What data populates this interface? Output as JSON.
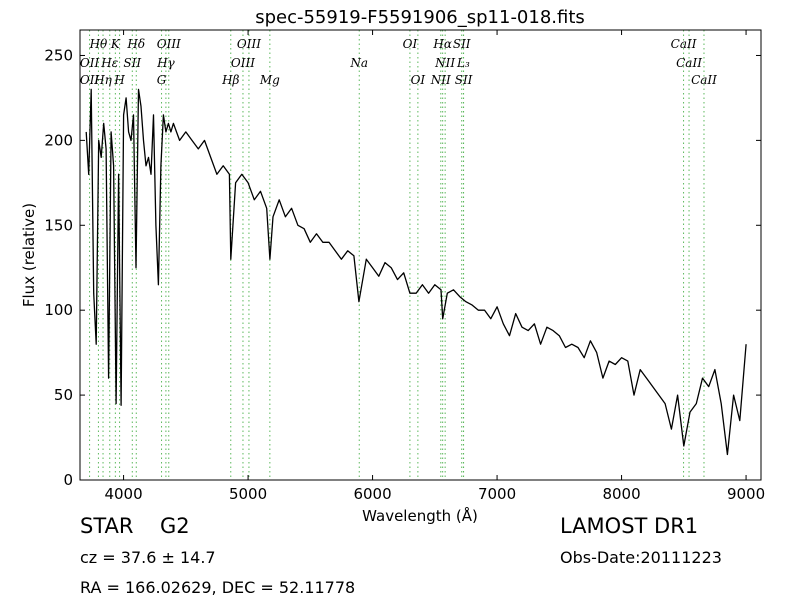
{
  "chart_data": {
    "type": "line",
    "title": "spec-55919-F5591906_sp11-018.fits",
    "xlabel": "Wavelength (Å)",
    "ylabel": "Flux (relative)",
    "xlim": [
      3650,
      9120
    ],
    "ylim": [
      0,
      265
    ],
    "xticks": [
      4000,
      5000,
      6000,
      7000,
      8000,
      9000
    ],
    "yticks": [
      0,
      50,
      100,
      150,
      200,
      250
    ],
    "grid": false,
    "line_color": "#000000",
    "marker_color": "#5cb85c",
    "series": [
      {
        "x": [
          3700,
          3720,
          3740,
          3760,
          3780,
          3800,
          3820,
          3840,
          3860,
          3880,
          3900,
          3920,
          3940,
          3960,
          3980,
          4000,
          4020,
          4040,
          4060,
          4080,
          4100,
          4120,
          4140,
          4160,
          4180,
          4200,
          4220,
          4240,
          4260,
          4280,
          4300,
          4320,
          4340,
          4360,
          4380,
          4400,
          4450,
          4500,
          4550,
          4600,
          4650,
          4700,
          4750,
          4800,
          4850,
          4861,
          4900,
          4950,
          5000,
          5050,
          5100,
          5150,
          5175,
          5200,
          5250,
          5300,
          5350,
          5400,
          5450,
          5500,
          5550,
          5600,
          5650,
          5700,
          5750,
          5800,
          5850,
          5890,
          5950,
          6000,
          6050,
          6100,
          6150,
          6200,
          6250,
          6300,
          6350,
          6400,
          6450,
          6500,
          6550,
          6563,
          6600,
          6650,
          6700,
          6750,
          6800,
          6850,
          6900,
          6950,
          7000,
          7050,
          7100,
          7150,
          7200,
          7250,
          7300,
          7350,
          7400,
          7450,
          7500,
          7550,
          7600,
          7650,
          7700,
          7750,
          7800,
          7850,
          7900,
          7950,
          8000,
          8050,
          8100,
          8150,
          8200,
          8250,
          8300,
          8350,
          8400,
          8450,
          8500,
          8550,
          8600,
          8650,
          8700,
          8750,
          8800,
          8850,
          8900,
          8950,
          9000
        ],
        "values": [
          205,
          180,
          230,
          110,
          80,
          200,
          190,
          210,
          195,
          60,
          205,
          185,
          45,
          180,
          44,
          215,
          225,
          205,
          200,
          215,
          125,
          230,
          220,
          200,
          185,
          190,
          180,
          215,
          150,
          115,
          185,
          215,
          205,
          210,
          205,
          210,
          200,
          205,
          200,
          195,
          200,
          190,
          180,
          185,
          180,
          130,
          175,
          180,
          175,
          165,
          170,
          160,
          130,
          155,
          165,
          155,
          160,
          150,
          148,
          140,
          145,
          140,
          140,
          135,
          130,
          135,
          132,
          105,
          130,
          125,
          120,
          128,
          125,
          118,
          122,
          110,
          110,
          115,
          110,
          115,
          112,
          95,
          110,
          112,
          108,
          105,
          103,
          100,
          100,
          95,
          102,
          92,
          85,
          98,
          90,
          88,
          92,
          80,
          90,
          88,
          85,
          78,
          80,
          78,
          72,
          82,
          75,
          60,
          70,
          68,
          72,
          70,
          50,
          65,
          60,
          55,
          50,
          45,
          30,
          50,
          20,
          40,
          45,
          60,
          55,
          65,
          45,
          15,
          50,
          35,
          80
        ]
      }
    ],
    "lines": [
      {
        "label": "Hθ",
        "x": 3798,
        "row": 0
      },
      {
        "label": "K",
        "x": 3934,
        "row": 0
      },
      {
        "label": "Hδ",
        "x": 4102,
        "row": 0
      },
      {
        "label": "OIII",
        "x": 4363,
        "row": 0
      },
      {
        "label": "OIII",
        "x": 5007,
        "row": 0
      },
      {
        "label": "OI",
        "x": 6300,
        "row": 0
      },
      {
        "label": "Hα",
        "x": 6563,
        "row": 0
      },
      {
        "label": "SII",
        "x": 6716,
        "row": 0
      },
      {
        "label": "CaII",
        "x": 8498,
        "row": 0
      },
      {
        "label": "OII",
        "x": 3727,
        "row": 1
      },
      {
        "label": "Hε",
        "x": 3889,
        "row": 1
      },
      {
        "label": "SII",
        "x": 4070,
        "row": 1
      },
      {
        "label": "Hγ",
        "x": 4340,
        "row": 1
      },
      {
        "label": "OIII",
        "x": 4959,
        "row": 1
      },
      {
        "label": "Na",
        "x": 5893,
        "row": 1
      },
      {
        "label": "NII",
        "x": 6583,
        "row": 1
      },
      {
        "label": "L₃",
        "x": 6730,
        "row": 1
      },
      {
        "label": "CaII",
        "x": 8542,
        "row": 1
      },
      {
        "label": "OII",
        "x": 3727,
        "row": 2
      },
      {
        "label": "Hη",
        "x": 3835,
        "row": 2
      },
      {
        "label": "H",
        "x": 3968,
        "row": 2
      },
      {
        "label": "G",
        "x": 4305,
        "row": 2
      },
      {
        "label": "Hβ",
        "x": 4861,
        "row": 2
      },
      {
        "label": "Mg",
        "x": 5175,
        "row": 2
      },
      {
        "label": "OI",
        "x": 6364,
        "row": 2
      },
      {
        "label": "NII",
        "x": 6548,
        "row": 2
      },
      {
        "label": "SII",
        "x": 6731,
        "row": 2
      },
      {
        "label": "CaII",
        "x": 8662,
        "row": 2
      }
    ]
  },
  "info": {
    "object_class": "STAR",
    "object_subclass": "G2",
    "survey": "LAMOST DR1",
    "cz": "cz = 37.6  ± 14.7",
    "obs_date": "Obs-Date:20111223",
    "radec": "RA = 166.02629, DEC = 52.11778"
  }
}
